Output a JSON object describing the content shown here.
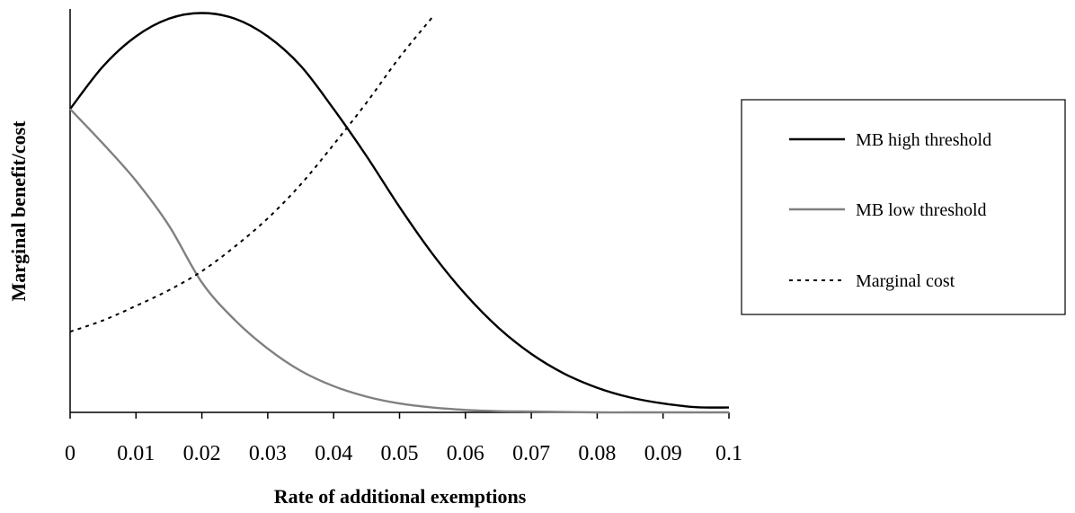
{
  "chart_data": {
    "type": "line",
    "title": "",
    "xlabel": "Rate of additional exemptions",
    "ylabel": "Marginal benefit/cost",
    "xlim": [
      0,
      0.1
    ],
    "ylim": [
      0,
      1
    ],
    "x_ticks": [
      "0",
      "0.01",
      "0.02",
      "0.03",
      "0.04",
      "0.05",
      "0.06",
      "0.07",
      "0.08",
      "0.09",
      "0.1"
    ],
    "y_ticks_shown": false,
    "grid": false,
    "legend_position": "right",
    "series": [
      {
        "name": "MB high threshold",
        "color": "#000000",
        "style": "solid",
        "x": [
          0,
          0.005,
          0.01,
          0.015,
          0.02,
          0.025,
          0.03,
          0.035,
          0.04,
          0.045,
          0.05,
          0.055,
          0.06,
          0.065,
          0.07,
          0.075,
          0.08,
          0.085,
          0.09,
          0.095,
          0.1
        ],
        "y": [
          0.752,
          0.858,
          0.932,
          0.976,
          0.99,
          0.976,
          0.932,
          0.859,
          0.752,
          0.635,
          0.509,
          0.393,
          0.293,
          0.21,
          0.145,
          0.096,
          0.061,
          0.037,
          0.022,
          0.013,
          0.012
        ]
      },
      {
        "name": "MB low threshold",
        "color": "#808080",
        "style": "solid",
        "x": [
          0,
          0.005,
          0.01,
          0.015,
          0.02,
          0.025,
          0.03,
          0.035,
          0.04,
          0.045,
          0.05,
          0.055,
          0.06,
          0.065,
          0.07,
          0.075,
          0.08,
          0.085,
          0.09,
          0.095,
          0.1
        ],
        "y": [
          0.752,
          0.666,
          0.574,
          0.463,
          0.322,
          0.229,
          0.158,
          0.103,
          0.065,
          0.039,
          0.022,
          0.012,
          0.006,
          0.003,
          0.002,
          0.001,
          0.0,
          0.0,
          0.0,
          0.0,
          0.0
        ]
      },
      {
        "name": "Marginal cost",
        "color": "#000000",
        "style": "dotted",
        "x": [
          0,
          0.005,
          0.01,
          0.015,
          0.02,
          0.025,
          0.03,
          0.035,
          0.04,
          0.045,
          0.05,
          0.055
        ],
        "y": [
          0.2,
          0.228,
          0.264,
          0.303,
          0.35,
          0.411,
          0.481,
          0.565,
          0.664,
          0.768,
          0.88,
          0.98
        ]
      }
    ]
  }
}
